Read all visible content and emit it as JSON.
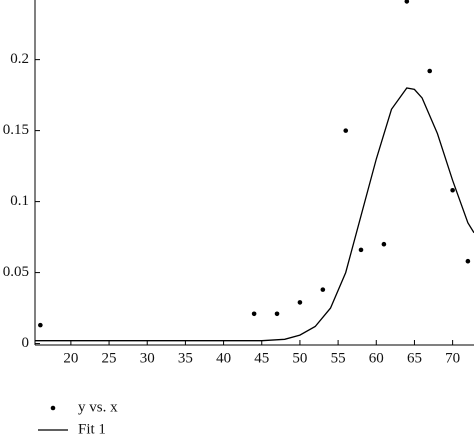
{
  "chart_data": {
    "type": "scatter",
    "xlim": [
      15.3,
      72.8
    ],
    "ylim": [
      -0.001,
      0.242
    ],
    "xticks": [
      20,
      25,
      30,
      35,
      40,
      45,
      50,
      55,
      60,
      65,
      70
    ],
    "yticks": [
      0,
      0.05,
      0.1,
      0.15,
      0.2
    ],
    "series": [
      {
        "name": "y vs. x",
        "color": "#000000",
        "kind": "points",
        "x": [
          16,
          44,
          47,
          50,
          53,
          56,
          58,
          61,
          64,
          67,
          70,
          72
        ],
        "values": [
          0.013,
          0.021,
          0.021,
          0.029,
          0.038,
          0.15,
          0.066,
          0.07,
          0.241,
          0.192,
          0.108,
          0.058
        ]
      },
      {
        "name": "Fit 1",
        "color": "#000000",
        "kind": "line",
        "x": [
          15.3,
          45,
          48,
          50,
          52,
          54,
          56,
          58,
          60,
          62,
          64,
          65,
          66,
          68,
          70,
          72,
          72.8
        ],
        "values": [
          0.002,
          0.002,
          0.003,
          0.006,
          0.012,
          0.025,
          0.05,
          0.09,
          0.13,
          0.165,
          0.18,
          0.179,
          0.173,
          0.148,
          0.115,
          0.085,
          0.078
        ]
      }
    ]
  }
}
